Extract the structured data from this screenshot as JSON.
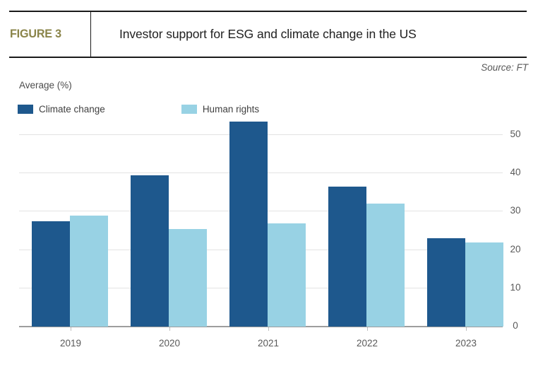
{
  "figure": {
    "label": "FIGURE 3",
    "title": "Investor support for ESG and climate change in the US",
    "source": "Source: FT"
  },
  "chart_data": {
    "type": "bar",
    "title": "Investor support for ESG and climate change in the US",
    "unit_label": "Average (%)",
    "categories": [
      "2019",
      "2020",
      "2021",
      "2022",
      "2023"
    ],
    "series": [
      {
        "name": "Climate change",
        "color": "#1e588d",
        "values": [
          27.5,
          39.5,
          53.5,
          36.5,
          23
        ]
      },
      {
        "name": "Human rights",
        "color": "#98d2e4",
        "values": [
          29,
          25.5,
          27,
          32,
          22
        ]
      }
    ],
    "ylim": [
      0,
      55
    ],
    "yticks": [
      0,
      10,
      20,
      30,
      40,
      50
    ],
    "grid": "horizontal",
    "legend_position": "top-left",
    "y_axis_side": "right"
  },
  "colors": {
    "figure_label": "#8a8449",
    "rule": "#1a1a1a",
    "gridline": "#e3e3e3",
    "axis_line": "#9e9e9e",
    "tick_text": "#595959"
  }
}
